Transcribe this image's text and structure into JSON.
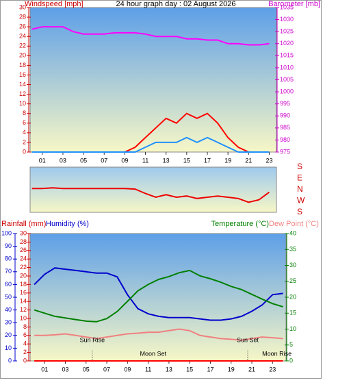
{
  "chart_data": [
    {
      "type": "line",
      "title": "24 hour graph day : 02 August 2026",
      "y_label": "Windspeed [mph]",
      "y2_label": "Barometer [mb]",
      "x": [
        0,
        1,
        2,
        3,
        4,
        5,
        6,
        7,
        8,
        9,
        10,
        11,
        12,
        13,
        14,
        15,
        16,
        17,
        18,
        19,
        20,
        21,
        22,
        23
      ],
      "xlim": [
        -0.18,
        23.7
      ],
      "xticks": [
        {
          "value": 1,
          "label": "01"
        },
        {
          "value": 3,
          "label": "03"
        },
        {
          "value": 5,
          "label": "05"
        },
        {
          "value": 7,
          "label": "07"
        },
        {
          "value": 9,
          "label": "09"
        },
        {
          "value": 11,
          "label": "11"
        },
        {
          "value": 13,
          "label": "13"
        },
        {
          "value": 15,
          "label": "15"
        },
        {
          "value": 17,
          "label": "17"
        },
        {
          "value": 19,
          "label": "19"
        },
        {
          "value": 21,
          "label": "21"
        },
        {
          "value": 23,
          "label": "23"
        }
      ],
      "ylim": [
        0,
        30
      ],
      "yticks": [
        0,
        2,
        4,
        6,
        8,
        10,
        12,
        14,
        16,
        18,
        20,
        22,
        24,
        26,
        28,
        30
      ],
      "y_color": "#cc0000",
      "y2lim": [
        975,
        1035
      ],
      "y2ticks": [
        975,
        980,
        985,
        990,
        995,
        1000,
        1005,
        1010,
        1015,
        1020,
        1025,
        1030,
        1035
      ],
      "y2_color": "#cc00cc",
      "series": [
        {
          "color": "#ff00ff",
          "axis": "y2",
          "values": [
            1026,
            1027,
            1027,
            1027,
            1025,
            1024,
            1024,
            1024,
            1024.5,
            1024.5,
            1024.5,
            1024,
            1023,
            1023,
            1023,
            1022,
            1022,
            1021.5,
            1021.5,
            1020,
            1020,
            1019.5,
            1019.5,
            1020
          ]
        },
        {
          "color": "#ff0000",
          "axis": "y",
          "values": [
            0,
            0,
            0,
            0,
            0,
            0,
            0,
            0,
            0,
            0,
            1,
            3,
            5,
            7,
            6,
            8,
            7,
            8,
            6,
            3,
            1,
            0,
            0,
            0
          ]
        },
        {
          "color": "#1e90ff",
          "axis": "y",
          "values": [
            0,
            0,
            0,
            0,
            0,
            0,
            0,
            0,
            0,
            0,
            0,
            1,
            2,
            2,
            2,
            3,
            2,
            3,
            2,
            1,
            0,
            0,
            0,
            0
          ]
        }
      ]
    },
    {
      "type": "line",
      "x": [
        0,
        1,
        2,
        3,
        4,
        5,
        6,
        7,
        8,
        9,
        10,
        11,
        12,
        13,
        14,
        15,
        16,
        17,
        18,
        19,
        20,
        21,
        22,
        23
      ],
      "xlim": [
        -0.18,
        23.7
      ],
      "ylim": [
        -180,
        180
      ],
      "y_color": "#cc0000",
      "yticks": [
        {
          "value": 180,
          "label": "S"
        },
        {
          "value": 90,
          "label": "E"
        },
        {
          "value": 0,
          "label": "N"
        },
        {
          "value": -90,
          "label": "W"
        },
        {
          "value": -180,
          "label": "S"
        }
      ],
      "series": [
        {
          "color": "#ee0000",
          "axis": "y",
          "values": [
            10,
            10,
            15,
            10,
            10,
            10,
            10,
            10,
            10,
            10,
            5,
            -30,
            -60,
            -40,
            -60,
            -50,
            -70,
            -60,
            -50,
            -60,
            -70,
            -100,
            -80,
            -20
          ]
        }
      ]
    },
    {
      "type": "line",
      "y_label": "Rainfall (mm)",
      "y3_label": "Humidity (%)",
      "y2_label": "Temperature (°C)",
      "x": [
        0,
        1,
        2,
        3,
        4,
        5,
        6,
        7,
        8,
        9,
        10,
        11,
        12,
        13,
        14,
        15,
        16,
        17,
        18,
        19,
        20,
        21,
        22,
        23,
        24
      ],
      "xlim": [
        -0.4,
        24.3
      ],
      "xticks": [
        {
          "value": 1,
          "label": "01"
        },
        {
          "value": 3,
          "label": "03"
        },
        {
          "value": 5,
          "label": "05"
        },
        {
          "value": 7,
          "label": "07"
        },
        {
          "value": 9,
          "label": "09"
        },
        {
          "value": 11,
          "label": "11"
        },
        {
          "value": 13,
          "label": "13"
        },
        {
          "value": 15,
          "label": "15"
        },
        {
          "value": 17,
          "label": "17"
        },
        {
          "value": 19,
          "label": "19"
        },
        {
          "value": 21,
          "label": "21"
        },
        {
          "value": 23,
          "label": "23"
        }
      ],
      "ylim": [
        0,
        30
      ],
      "yticks": [
        0,
        2,
        4,
        6,
        8,
        10,
        12,
        14,
        16,
        18,
        20,
        22,
        24,
        26,
        28,
        30
      ],
      "y_color": "#cc0000",
      "y2lim": [
        0,
        40
      ],
      "y2ticks": [
        0,
        5,
        10,
        15,
        20,
        25,
        30,
        35,
        40
      ],
      "y2_color": "#008000",
      "y3lim": [
        0,
        100
      ],
      "y3ticks": [
        0,
        10,
        20,
        30,
        40,
        50,
        60,
        70,
        80,
        90,
        100
      ],
      "y3_color": "#0000cc",
      "series": [
        {
          "color": "#ff0000",
          "axis": "y",
          "values": [
            0,
            0,
            0,
            0,
            0,
            0,
            0,
            0,
            0,
            0,
            0,
            0,
            0,
            0,
            0,
            0,
            0,
            0,
            0,
            0,
            0,
            0,
            0,
            0,
            0
          ]
        },
        {
          "color": "#0000cc",
          "axis": "y3",
          "values": [
            60,
            68,
            73,
            72,
            71,
            70,
            69,
            69,
            66,
            52,
            41,
            37,
            35,
            34,
            34,
            34,
            33,
            32,
            32,
            33,
            35,
            39,
            44,
            52,
            53
          ]
        },
        {
          "color": "#008000",
          "axis": "y2",
          "values": [
            16,
            15,
            14,
            13.5,
            13,
            12.5,
            12.3,
            13.3,
            15.5,
            18.7,
            22,
            24,
            25.6,
            26.5,
            27.7,
            28.4,
            26.7,
            25.8,
            24.7,
            23.4,
            22.4,
            20.9,
            19.4,
            18,
            17
          ]
        },
        {
          "name": "Dew Point (°C)",
          "color": "#f08080",
          "axis": "y2",
          "values": [
            8,
            8,
            8.2,
            8.5,
            8,
            7.5,
            7,
            7.5,
            8,
            8.5,
            8.7,
            9,
            9,
            9.5,
            10,
            9.5,
            8,
            7.5,
            7,
            6.8,
            6.5,
            7,
            7.5,
            7.3,
            7
          ]
        }
      ],
      "annotations": [
        {
          "text": "Sun Rise",
          "x": 5.6,
          "line": true
        },
        {
          "text": "Moon Set",
          "x": 10.2,
          "line": false
        },
        {
          "text": "Sun Set",
          "x": 20.6,
          "line": true
        },
        {
          "text": "Moon Rise",
          "x": 22.0,
          "line": false
        }
      ]
    }
  ]
}
